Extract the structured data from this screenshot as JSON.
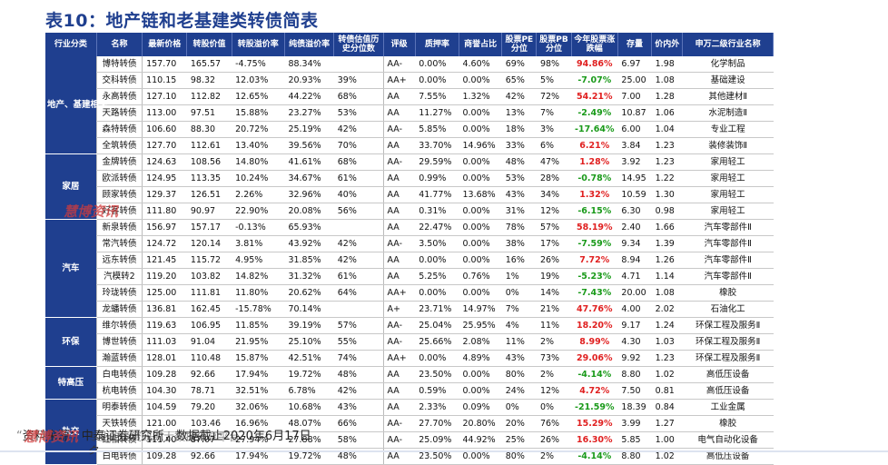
{
  "title": "表10：地产链和老基建类转债简表",
  "headers": [
    "行业分类",
    "名称",
    "最新价格",
    "转股价值",
    "转股溢价率",
    "纯债溢价率",
    "转债估值历史分位数",
    "评级",
    "质押率",
    "商誉占比",
    "股票PE分位",
    "股票PB分位",
    "今年股票涨跌幅",
    "存量",
    "价内外",
    "申万二级行业名称"
  ],
  "groups": [
    {
      "category": "地产、基建相关",
      "rows": [
        [
          "博特转债",
          "157.70",
          "165.57",
          "-4.75%",
          "88.34%",
          "",
          "AA-",
          "0.00%",
          "4.60%",
          "69%",
          "98%",
          "94.86%",
          "6.97",
          "1.98",
          "化学制品"
        ],
        [
          "交科转债",
          "110.15",
          "98.32",
          "12.03%",
          "20.93%",
          "39%",
          "AA+",
          "0.00%",
          "0.00%",
          "65%",
          "5%",
          "-7.07%",
          "25.00",
          "1.08",
          "基础建设"
        ],
        [
          "永高转债",
          "127.10",
          "112.82",
          "12.65%",
          "44.22%",
          "68%",
          "AA",
          "7.55%",
          "1.32%",
          "42%",
          "72%",
          "54.21%",
          "7.00",
          "1.28",
          "其他建材Ⅱ"
        ],
        [
          "天路转债",
          "113.00",
          "97.51",
          "15.88%",
          "23.27%",
          "53%",
          "AA",
          "11.27%",
          "0.00%",
          "13%",
          "7%",
          "-2.49%",
          "10.87",
          "1.06",
          "水泥制造Ⅱ"
        ],
        [
          "森特转债",
          "106.60",
          "88.30",
          "20.72%",
          "25.19%",
          "42%",
          "AA-",
          "5.85%",
          "0.00%",
          "18%",
          "3%",
          "-17.64%",
          "6.00",
          "1.04",
          "专业工程"
        ],
        [
          "全筑转债",
          "127.70",
          "112.61",
          "13.40%",
          "39.56%",
          "70%",
          "AA",
          "33.70%",
          "14.96%",
          "33%",
          "6%",
          "6.21%",
          "3.84",
          "1.23",
          "装修装饰Ⅱ"
        ]
      ]
    },
    {
      "category": "家居",
      "rows": [
        [
          "金牌转债",
          "124.63",
          "108.56",
          "14.80%",
          "41.61%",
          "68%",
          "AA-",
          "29.59%",
          "0.00%",
          "48%",
          "47%",
          "1.28%",
          "3.92",
          "1.23",
          "家用轻工"
        ],
        [
          "欧派转债",
          "124.95",
          "113.35",
          "10.24%",
          "34.67%",
          "61%",
          "AA",
          "0.99%",
          "0.00%",
          "53%",
          "28%",
          "-0.78%",
          "14.95",
          "1.22",
          "家用轻工"
        ],
        [
          "顾家转债",
          "129.37",
          "126.51",
          "2.26%",
          "32.96%",
          "40%",
          "AA",
          "41.77%",
          "13.68%",
          "43%",
          "34%",
          "1.32%",
          "10.59",
          "1.30",
          "家用轻工"
        ],
        [
          "好客转债",
          "111.80",
          "90.97",
          "22.90%",
          "20.08%",
          "56%",
          "AA",
          "0.31%",
          "0.00%",
          "31%",
          "12%",
          "-6.15%",
          "6.30",
          "0.98",
          "家用轻工"
        ]
      ]
    },
    {
      "category": "汽车",
      "rows": [
        [
          "新泉转债",
          "156.97",
          "157.17",
          "-0.13%",
          "65.93%",
          "",
          "AA",
          "22.47%",
          "0.00%",
          "78%",
          "57%",
          "58.19%",
          "2.40",
          "1.66",
          "汽车零部件Ⅱ"
        ],
        [
          "常汽转债",
          "124.72",
          "120.14",
          "3.81%",
          "43.92%",
          "42%",
          "AA-",
          "3.50%",
          "0.00%",
          "38%",
          "17%",
          "-7.59%",
          "9.34",
          "1.39",
          "汽车零部件Ⅱ"
        ],
        [
          "远东转债",
          "121.45",
          "115.72",
          "4.95%",
          "31.85%",
          "42%",
          "AA",
          "0.00%",
          "0.00%",
          "16%",
          "26%",
          "7.72%",
          "8.94",
          "1.26",
          "汽车零部件Ⅱ"
        ],
        [
          "汽模转2",
          "119.20",
          "103.82",
          "14.82%",
          "31.32%",
          "61%",
          "AA",
          "5.25%",
          "0.76%",
          "1%",
          "19%",
          "-5.23%",
          "4.71",
          "1.14",
          "汽车零部件Ⅱ"
        ],
        [
          "玲珑转债",
          "125.00",
          "111.81",
          "11.80%",
          "20.62%",
          "64%",
          "AA+",
          "0.00%",
          "0.00%",
          "0%",
          "14%",
          "-7.43%",
          "20.00",
          "1.08",
          "橡胶"
        ],
        [
          "龙蟠转债",
          "136.81",
          "162.45",
          "-15.78%",
          "70.14%",
          "",
          "A+",
          "23.71%",
          "14.97%",
          "7%",
          "21%",
          "47.76%",
          "4.00",
          "2.02",
          "石油化工"
        ]
      ]
    },
    {
      "category": "环保",
      "rows": [
        [
          "维尔转债",
          "119.63",
          "106.95",
          "11.85%",
          "39.19%",
          "57%",
          "AA-",
          "25.04%",
          "25.95%",
          "4%",
          "11%",
          "18.20%",
          "9.17",
          "1.24",
          "环保工程及服务Ⅱ"
        ],
        [
          "博世转债",
          "111.03",
          "91.04",
          "21.95%",
          "25.10%",
          "55%",
          "AA-",
          "25.66%",
          "2.08%",
          "11%",
          "2%",
          "8.99%",
          "4.30",
          "1.03",
          "环保工程及服务Ⅱ"
        ],
        [
          "瀚蓝转债",
          "128.01",
          "110.48",
          "15.87%",
          "42.51%",
          "74%",
          "AA+",
          "0.00%",
          "4.89%",
          "43%",
          "73%",
          "29.06%",
          "9.92",
          "1.23",
          "环保工程及服务Ⅱ"
        ]
      ]
    },
    {
      "category": "特高压",
      "rows": [
        [
          "白电转债",
          "109.28",
          "92.66",
          "17.94%",
          "19.72%",
          "48%",
          "AA",
          "23.50%",
          "0.00%",
          "80%",
          "2%",
          "-4.14%",
          "8.80",
          "1.02",
          "高低压设备"
        ],
        [
          "杭电转债",
          "104.30",
          "78.71",
          "32.51%",
          "6.78%",
          "42%",
          "AA",
          "0.59%",
          "0.00%",
          "24%",
          "12%",
          "4.72%",
          "7.50",
          "0.81",
          "高低压设备"
        ]
      ]
    },
    {
      "category": "轨交",
      "rows": [
        [
          "明泰转债",
          "104.59",
          "79.20",
          "32.06%",
          "10.68%",
          "43%",
          "AA",
          "2.33%",
          "0.09%",
          "0%",
          "0%",
          "-21.59%",
          "18.39",
          "0.84",
          "工业金属"
        ],
        [
          "天铁转债",
          "121.00",
          "103.46",
          "16.96%",
          "48.07%",
          "66%",
          "AA-",
          "27.70%",
          "20.80%",
          "20%",
          "76%",
          "15.29%",
          "3.99",
          "1.27",
          "橡胶"
        ],
        [
          "红相转债",
          "111.40",
          "87.07",
          "27.94%",
          "27.88%",
          "58%",
          "AA-",
          "25.09%",
          "44.92%",
          "25%",
          "26%",
          "16.30%",
          "5.85",
          "1.00",
          "电气自动化设备"
        ],
        [
          "白电转债",
          "109.28",
          "92.66",
          "17.94%",
          "19.72%",
          "48%",
          "AA",
          "23.50%",
          "0.00%",
          "80%",
          "2%",
          "-4.14%",
          "8.80",
          "1.02",
          "高低压设备"
        ]
      ]
    }
  ],
  "footer": "资料来源：中泰证券研究所，数据截止2020年6月17日",
  "footer_quote": "“",
  "watermark": "慧博资讯",
  "watermark_sub": "专业的投资研究大数据分享平台",
  "bottom_mark": "ク",
  "colors": {
    "header_bg": "#1f3f8f",
    "up": "#e02020",
    "down": "#1a9a1a",
    "title": "#1f3f8f"
  }
}
